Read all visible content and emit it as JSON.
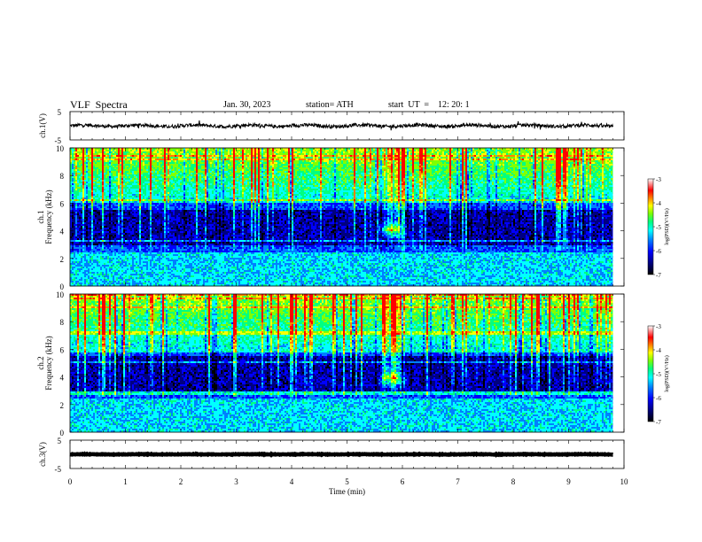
{
  "header": {
    "title": "VLF  Spectra",
    "date": "Jan. 30, 2023",
    "station": "station= ATH",
    "start": "start  UT  =    12: 20: 1"
  },
  "chart_data": [
    {
      "type": "line",
      "panel": "ch1-waveform",
      "ylabel": "ch.1(V)",
      "yticks": [
        "5",
        "-5"
      ],
      "ylim": [
        -5,
        5
      ],
      "xlim": [
        0,
        10
      ],
      "xrange_data": [
        0,
        9.8
      ],
      "baseline": 0,
      "amplitude_approx": 1
    },
    {
      "type": "heatmap",
      "panel": "ch1-spectrogram",
      "ylabel": "ch.1\nFrequency (kHz)",
      "ylabel_line1": "ch.1",
      "ylabel_line2": "Frequency (kHz)",
      "ylim": [
        0,
        10
      ],
      "yticks": [
        "0",
        "2",
        "4",
        "6",
        "8",
        "10"
      ],
      "xlim": [
        0,
        10
      ],
      "xrange_data": [
        0,
        9.8
      ],
      "colorbar": {
        "label": "log(PSD)(V²/Hz)",
        "range": [
          -7,
          -3
        ],
        "ticks": [
          "-3",
          "-4",
          "-5",
          "-6",
          "-7"
        ]
      },
      "features": {
        "spot_time_min": 5.8,
        "spot_freq_khz": 4.0,
        "noise_band_khz": [
          0,
          2.5
        ],
        "quiet_band_khz": [
          3,
          5.5
        ],
        "sferic_band_khz": [
          6,
          10
        ]
      }
    },
    {
      "type": "heatmap",
      "panel": "ch2-spectrogram",
      "ylabel": "ch.2\nFrequency (kHz)",
      "ylabel_line1": "ch.2",
      "ylabel_line2": "Frequency (kHz)",
      "ylim": [
        0,
        10
      ],
      "yticks": [
        "0",
        "2",
        "4",
        "6",
        "8",
        "10"
      ],
      "xlim": [
        0,
        10
      ],
      "xrange_data": [
        0,
        9.8
      ],
      "colorbar": {
        "label": "log(PSD)(V²/Hz)",
        "range": [
          -7,
          -3
        ],
        "ticks": [
          "-3",
          "-4",
          "-5",
          "-6",
          "-7"
        ]
      },
      "features": {
        "spot_time_min": 5.8,
        "spot_freq_khz": 3.8,
        "noise_band_khz": [
          0,
          2.5
        ],
        "quiet_band_khz": [
          3,
          5.5
        ],
        "sferic_band_khz": [
          6,
          10
        ]
      }
    },
    {
      "type": "line",
      "panel": "ch3-waveform",
      "ylabel": "ch.3(V)",
      "yticks": [
        "5",
        "-5"
      ],
      "ylim": [
        -5,
        5
      ],
      "xlim": [
        0,
        10
      ],
      "xrange_data": [
        0,
        9.8
      ],
      "baseline": 0,
      "amplitude_approx": 0.15,
      "xlabel": "Time  (min)",
      "xticks": [
        "0",
        "1",
        "2",
        "3",
        "4",
        "5",
        "6",
        "7",
        "8",
        "9",
        "10"
      ]
    }
  ],
  "colors": {
    "cmap": [
      "#000000",
      "#000080",
      "#0000ff",
      "#0080ff",
      "#00ffff",
      "#00ff80",
      "#80ff00",
      "#ffff00",
      "#ff8000",
      "#ff0000",
      "#ffffff"
    ]
  }
}
